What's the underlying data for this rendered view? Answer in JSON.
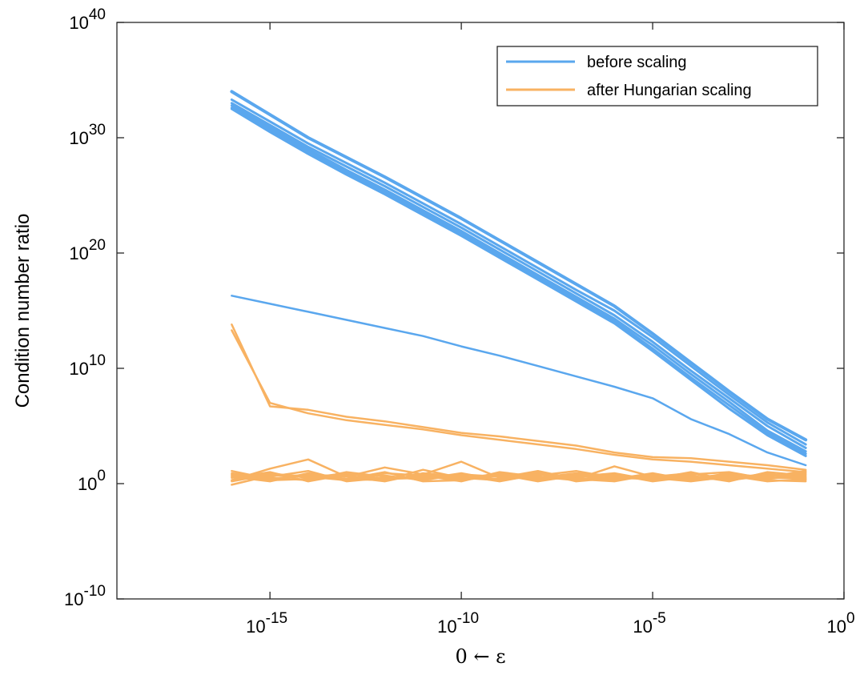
{
  "chart_data": {
    "type": "line",
    "xscale": "log",
    "yscale": "log",
    "xlabel": "0 ← ε",
    "ylabel": "Condition number ratio",
    "xlim": [
      1e-19,
      1
    ],
    "ylim": [
      1e-10,
      1e+40
    ],
    "xticks": [
      {
        "value": 1e-15,
        "base": "10",
        "exp": "-15"
      },
      {
        "value": 1e-10,
        "base": "10",
        "exp": "-10"
      },
      {
        "value": 1e-05,
        "base": "10",
        "exp": "-5"
      },
      {
        "value": 1,
        "base": "10",
        "exp": "0"
      }
    ],
    "yticks": [
      {
        "value": 1e-10,
        "base": "10",
        "exp": "-10"
      },
      {
        "value": 1,
        "base": "10",
        "exp": "0"
      },
      {
        "value": 10000000000.0,
        "base": "10",
        "exp": "10"
      },
      {
        "value": 1e+20,
        "base": "10",
        "exp": "20"
      },
      {
        "value": 1e+30,
        "base": "10",
        "exp": "30"
      },
      {
        "value": 1e+40,
        "base": "10",
        "exp": "40"
      }
    ],
    "grid": false,
    "legend": {
      "position": "top-right",
      "entries": [
        {
          "label": "before scaling",
          "color": "#5aa7ee"
        },
        {
          "label": "after Hungarian scaling",
          "color": "#f8b262"
        }
      ]
    },
    "colors": {
      "before": "#5aa7ee",
      "after": "#f8b262"
    },
    "x": [
      1e-16,
      1e-15,
      1e-14,
      1e-13,
      1e-12,
      1e-11,
      1e-10,
      1e-09,
      1e-08,
      1e-07,
      1e-06,
      1e-05,
      0.0001,
      0.001,
      0.01,
      0.1
    ],
    "series": [
      {
        "group": "before",
        "lw": 4,
        "log10_values": [
          34.0,
          32.0,
          30.0,
          28.3,
          26.6,
          24.8,
          23.0,
          21.1,
          19.2,
          17.3,
          15.4,
          13.0,
          10.5,
          8.0,
          5.6,
          3.8
        ]
      },
      {
        "group": "before",
        "lw": 3,
        "log10_values": [
          33.3,
          31.4,
          29.5,
          27.8,
          26.1,
          24.3,
          22.5,
          20.6,
          18.7,
          16.8,
          15.0,
          12.7,
          10.2,
          7.7,
          5.3,
          3.4
        ]
      },
      {
        "group": "before",
        "lw": 3,
        "log10_values": [
          33.0,
          31.1,
          29.2,
          27.5,
          25.8,
          24.0,
          22.2,
          20.3,
          18.4,
          16.5,
          14.6,
          12.3,
          9.8,
          7.4,
          5.0,
          3.1
        ]
      },
      {
        "group": "before",
        "lw": 3,
        "log10_values": [
          32.8,
          30.9,
          29.0,
          27.2,
          25.5,
          23.7,
          21.9,
          20.0,
          18.1,
          16.2,
          14.3,
          12.0,
          9.5,
          7.1,
          4.6,
          2.8
        ]
      },
      {
        "group": "before",
        "lw": 3,
        "log10_values": [
          32.6,
          30.7,
          28.8,
          27.0,
          25.3,
          23.5,
          21.7,
          19.8,
          17.9,
          16.0,
          14.1,
          11.7,
          9.2,
          6.8,
          4.4,
          2.6
        ]
      },
      {
        "group": "before",
        "lw": 3,
        "log10_values": [
          32.5,
          30.5,
          28.6,
          26.8,
          25.1,
          23.3,
          21.5,
          19.6,
          17.7,
          15.8,
          13.9,
          11.5,
          9.0,
          6.5,
          4.2,
          2.4
        ]
      },
      {
        "group": "before",
        "lw": 2.5,
        "log10_values": [
          16.3,
          15.6,
          14.9,
          14.2,
          13.5,
          12.8,
          11.9,
          11.1,
          10.2,
          9.3,
          8.4,
          7.4,
          5.6,
          4.3,
          2.7,
          1.6
        ]
      },
      {
        "group": "after",
        "lw": 2.5,
        "log10_values": [
          13.8,
          6.7,
          6.4,
          5.8,
          5.4,
          4.9,
          4.4,
          4.1,
          3.7,
          3.3,
          2.7,
          2.3,
          2.2,
          1.9,
          1.6,
          1.2
        ]
      },
      {
        "group": "after",
        "lw": 2.5,
        "log10_values": [
          13.3,
          7.0,
          6.1,
          5.5,
          5.1,
          4.7,
          4.2,
          3.8,
          3.4,
          3.0,
          2.5,
          2.1,
          1.9,
          1.6,
          1.3,
          1.0
        ]
      },
      {
        "group": "after",
        "lw": 2.5,
        "log10_values": [
          0.3,
          1.3,
          2.1,
          0.6,
          1.4,
          0.8,
          1.9,
          0.5,
          1.1,
          0.4,
          1.5,
          0.6,
          0.9,
          0.3,
          0.8,
          0.4
        ]
      },
      {
        "group": "after",
        "lw": 2.5,
        "log10_values": [
          0.6,
          0.2,
          0.9,
          0.4,
          0.3,
          1.2,
          0.5,
          0.8,
          0.2,
          0.7,
          0.4,
          0.9,
          0.3,
          0.5,
          0.7,
          0.6
        ]
      },
      {
        "group": "after",
        "lw": 2.5,
        "log10_values": [
          0.9,
          0.5,
          0.3,
          1.0,
          0.6,
          0.4,
          0.9,
          0.3,
          0.7,
          1.1,
          0.5,
          0.4,
          0.8,
          1.0,
          0.4,
          0.8
        ]
      },
      {
        "group": "after",
        "lw": 2.5,
        "log10_values": [
          0.2,
          0.8,
          0.6,
          0.3,
          0.9,
          0.7,
          0.2,
          1.0,
          0.6,
          0.3,
          0.8,
          0.2,
          0.6,
          0.4,
          0.9,
          0.3
        ]
      },
      {
        "group": "after",
        "lw": 2.5,
        "log10_values": [
          1.1,
          0.4,
          0.8,
          0.6,
          0.2,
          0.9,
          0.6,
          0.4,
          0.9,
          0.5,
          0.3,
          0.7,
          0.5,
          0.8,
          0.6,
          1.1
        ]
      },
      {
        "group": "after",
        "lw": 2.5,
        "log10_values": [
          0.5,
          1.0,
          0.2,
          0.8,
          0.7,
          0.3,
          0.8,
          0.6,
          0.4,
          0.8,
          0.6,
          0.5,
          0.2,
          0.6,
          0.5,
          0.5
        ]
      },
      {
        "group": "after",
        "lw": 2.5,
        "log10_values": [
          0.8,
          0.6,
          1.1,
          0.2,
          0.5,
          0.6,
          0.4,
          0.9,
          0.3,
          0.6,
          0.9,
          0.3,
          0.7,
          0.2,
          1.0,
          0.7
        ]
      },
      {
        "group": "after",
        "lw": 2.5,
        "log10_values": [
          0.3,
          0.9,
          0.5,
          0.9,
          0.4,
          0.5,
          0.7,
          0.2,
          0.8,
          0.4,
          0.2,
          0.8,
          0.4,
          0.9,
          0.3,
          0.2
        ]
      },
      {
        "group": "after",
        "lw": 2.5,
        "log10_values": [
          -0.1,
          0.7,
          0.7,
          0.4,
          1.0,
          0.2,
          0.3,
          0.7,
          0.5,
          0.9,
          0.7,
          0.4,
          1.0,
          0.3,
          0.7,
          0.9
        ]
      },
      {
        "group": "after",
        "lw": 2.5,
        "log10_values": [
          0.7,
          0.3,
          0.4,
          0.7,
          0.3,
          0.8,
          0.5,
          0.3,
          1.0,
          0.2,
          0.5,
          0.6,
          0.3,
          0.7,
          0.2,
          0.4
        ]
      }
    ]
  }
}
